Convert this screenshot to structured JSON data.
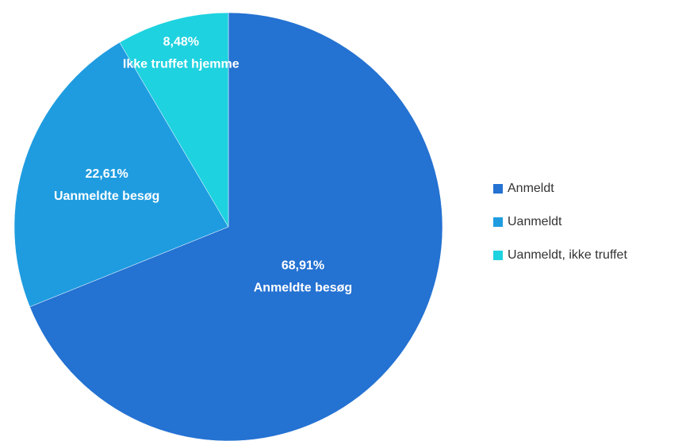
{
  "chart_data": {
    "type": "pie",
    "categories": [
      "Anmeldt",
      "Uanmeldt",
      "Uanmeldt, ikke truffet"
    ],
    "values": [
      68.91,
      22.61,
      8.48
    ],
    "value_labels": [
      "68,91%",
      "22,61%",
      "8,48%"
    ],
    "slice_labels": [
      "Anmeldte besøg",
      "Uanmeldte besøg",
      "Ikke truffet hjemme"
    ],
    "colors": [
      "#2472d2",
      "#1f9ce0",
      "#1ed2e0"
    ],
    "legend": "right"
  }
}
